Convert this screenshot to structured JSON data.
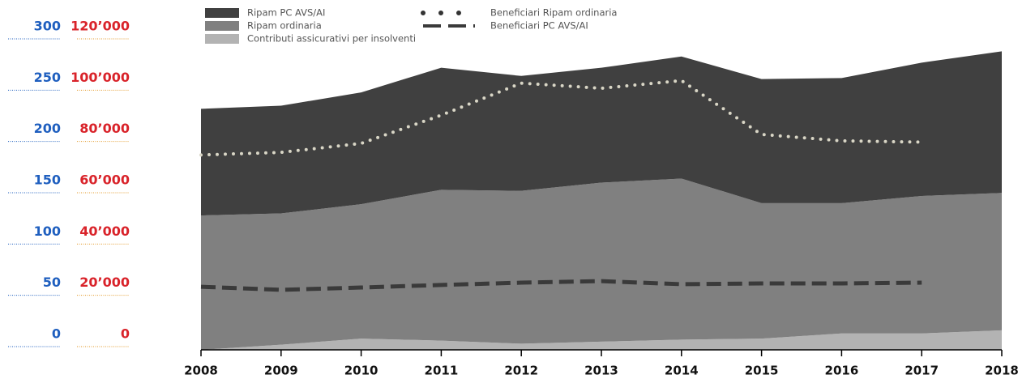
{
  "chart_data": {
    "type": "stacked-area",
    "x": [
      2008,
      2009,
      2010,
      2011,
      2012,
      2013,
      2014,
      2015,
      2016,
      2017,
      2018
    ],
    "series": [
      {
        "name": "Contributi assicurativi per insolventi",
        "color": "#b3b3b3",
        "values": [
          0,
          5,
          11,
          9,
          6,
          8,
          10,
          11,
          16,
          16,
          19
        ]
      },
      {
        "name": "Ripam ordinaria",
        "color": "#808080",
        "values": [
          131,
          128,
          131,
          147,
          149,
          155,
          157,
          132,
          127,
          134,
          134
        ]
      },
      {
        "name": "Ripam PC AVS/AI",
        "color": "#404040",
        "values": [
          104,
          105,
          109,
          119,
          112,
          112,
          119,
          121,
          122,
          130,
          138
        ]
      },
      {
        "name": "Beneficiari Ripam ordinaria",
        "color": "#d9d6c6",
        "type": "line",
        "style": "dotted",
        "axis": "y2",
        "values": [
          76000,
          77000,
          80500,
          91500,
          104000,
          102000,
          105000,
          84000,
          81500,
          81000,
          null
        ]
      },
      {
        "name": "Beneficiari PC AVS/AI",
        "color": "#3a3a3a",
        "type": "line",
        "style": "dashed",
        "axis": "y2",
        "values": [
          24600,
          23400,
          24300,
          25300,
          26200,
          26800,
          25600,
          25900,
          25900,
          26200,
          null
        ]
      }
    ],
    "xlim": [
      2008,
      2018
    ],
    "xticks": [
      2008,
      2009,
      2010,
      2011,
      2012,
      2013,
      2014,
      2015,
      2016,
      2017,
      2018
    ],
    "ylim": [
      0,
      300
    ],
    "yticks": [
      0,
      50,
      100,
      150,
      200,
      250,
      300
    ],
    "y2lim": [
      0,
      120000
    ],
    "y2ticks": [
      0,
      {
        "value": 20000,
        "label": "20’000"
      },
      {
        "value": 40000,
        "label": "40’000"
      },
      {
        "value": 60000,
        "label": "60’000"
      },
      {
        "value": 80000,
        "label": "80’000"
      },
      {
        "value": 100000,
        "label": "100’000"
      },
      {
        "value": 120000,
        "label": "120’000"
      }
    ]
  }
}
